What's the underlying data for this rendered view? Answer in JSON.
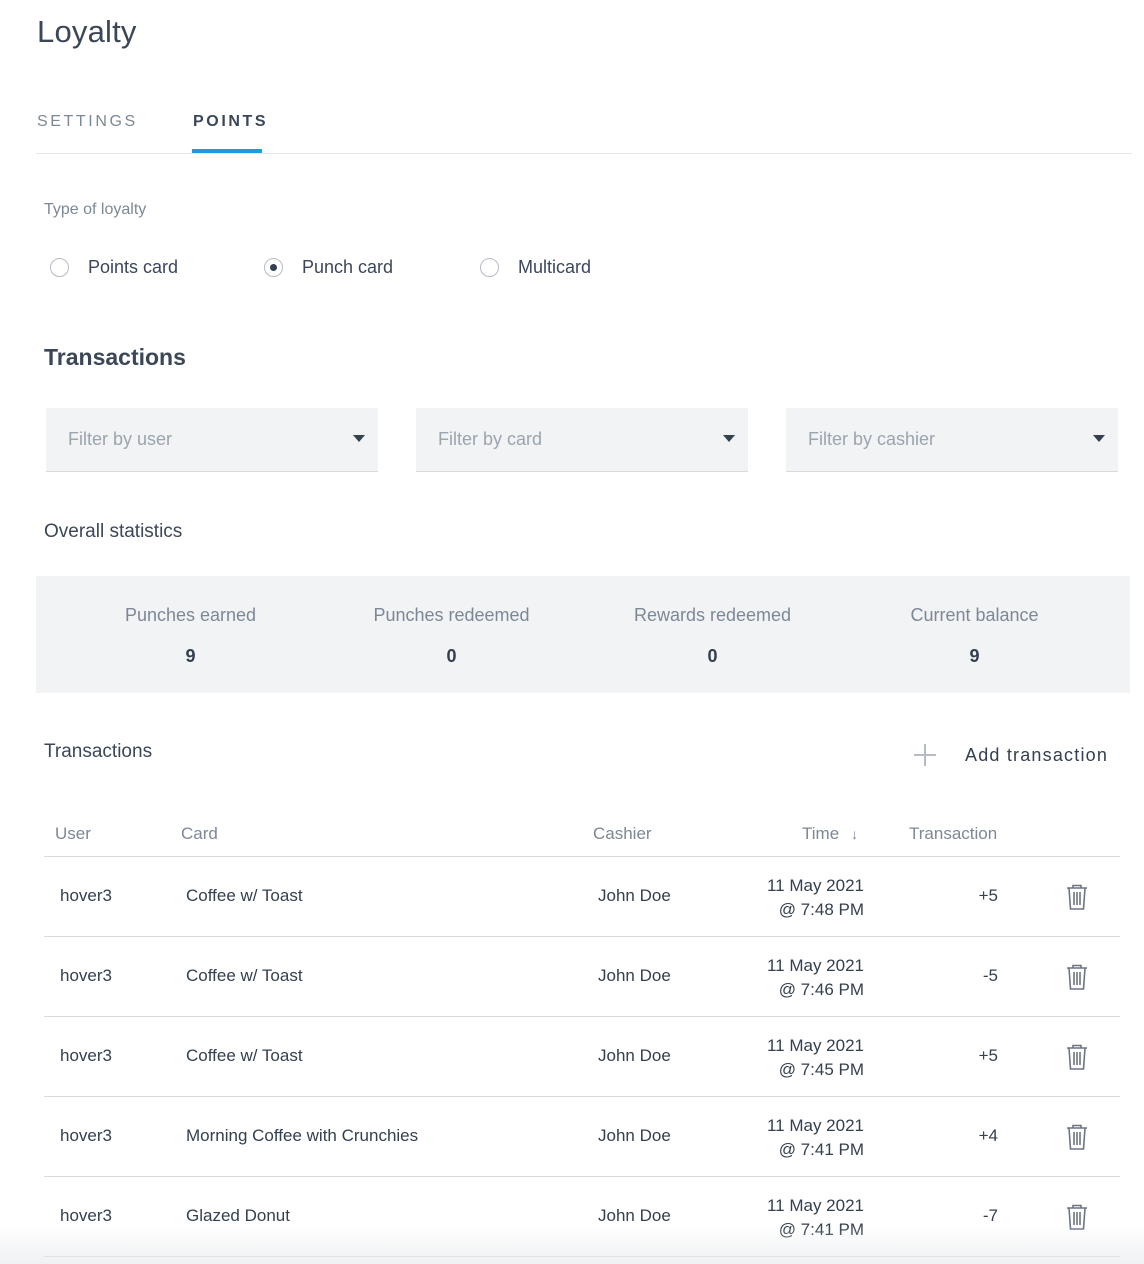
{
  "page": {
    "title": "Loyalty"
  },
  "tabs": [
    {
      "label": "SETTINGS",
      "active": false
    },
    {
      "label": "POINTS",
      "active": true
    }
  ],
  "accent_color": "#1a9be6",
  "loyalty_type": {
    "label": "Type of loyalty",
    "options": [
      {
        "label": "Points card",
        "checked": false
      },
      {
        "label": "Punch card",
        "checked": true
      },
      {
        "label": "Multicard",
        "checked": false
      }
    ]
  },
  "transactions_section": {
    "title": "Transactions"
  },
  "filters": [
    {
      "placeholder": "Filter by user",
      "icon": "caret-down-icon"
    },
    {
      "placeholder": "Filter by card",
      "icon": "caret-down-icon"
    },
    {
      "placeholder": "Filter by cashier",
      "icon": "caret-down-icon"
    }
  ],
  "statistics": {
    "title": "Overall statistics",
    "items": [
      {
        "label": "Punches earned",
        "value": "9"
      },
      {
        "label": "Punches redeemed",
        "value": "0"
      },
      {
        "label": "Rewards redeemed",
        "value": "0"
      },
      {
        "label": "Current balance",
        "value": "9"
      }
    ]
  },
  "transactions_table": {
    "title": "Transactions",
    "add_label": "Add transaction",
    "columns": {
      "user": "User",
      "card": "Card",
      "cashier": "Cashier",
      "time": "Time",
      "transaction": "Transaction"
    },
    "sort_icon": "arrow-down-icon",
    "rows": [
      {
        "user": "hover3",
        "card": "Coffee w/ Toast",
        "cashier": "John Doe",
        "date": "11 May 2021",
        "time": "@ 7:48 PM",
        "amount": "+5"
      },
      {
        "user": "hover3",
        "card": "Coffee w/ Toast",
        "cashier": "John Doe",
        "date": "11 May 2021",
        "time": "@ 7:46 PM",
        "amount": "-5"
      },
      {
        "user": "hover3",
        "card": "Coffee w/ Toast",
        "cashier": "John Doe",
        "date": "11 May 2021",
        "time": "@ 7:45 PM",
        "amount": "+5"
      },
      {
        "user": "hover3",
        "card": "Morning Coffee with Crunchies",
        "cashier": "John Doe",
        "date": "11 May 2021",
        "time": "@ 7:41 PM",
        "amount": "+4"
      },
      {
        "user": "hover3",
        "card": "Glazed Donut",
        "cashier": "John Doe",
        "date": "11 May 2021",
        "time": "@ 7:41 PM",
        "amount": "-7"
      }
    ]
  }
}
